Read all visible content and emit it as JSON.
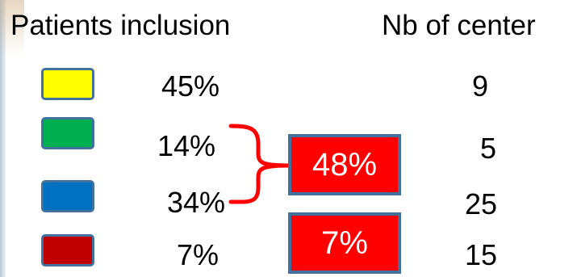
{
  "headers": {
    "inclusion": "Patients inclusion",
    "centers": "Nb of center"
  },
  "rows": [
    {
      "color": "#ffff00",
      "inclusion": "45%",
      "centers": "9"
    },
    {
      "color": "#00b050",
      "inclusion": "14%",
      "centers": "5"
    },
    {
      "color": "#0070c0",
      "inclusion": "34%",
      "centers": "25"
    },
    {
      "color": "#c00000",
      "inclusion": "7%",
      "centers": "15"
    }
  ],
  "groups": [
    {
      "value": "48%",
      "color": "#ff0000"
    },
    {
      "value": "7%",
      "color": "#ff0000"
    }
  ]
}
